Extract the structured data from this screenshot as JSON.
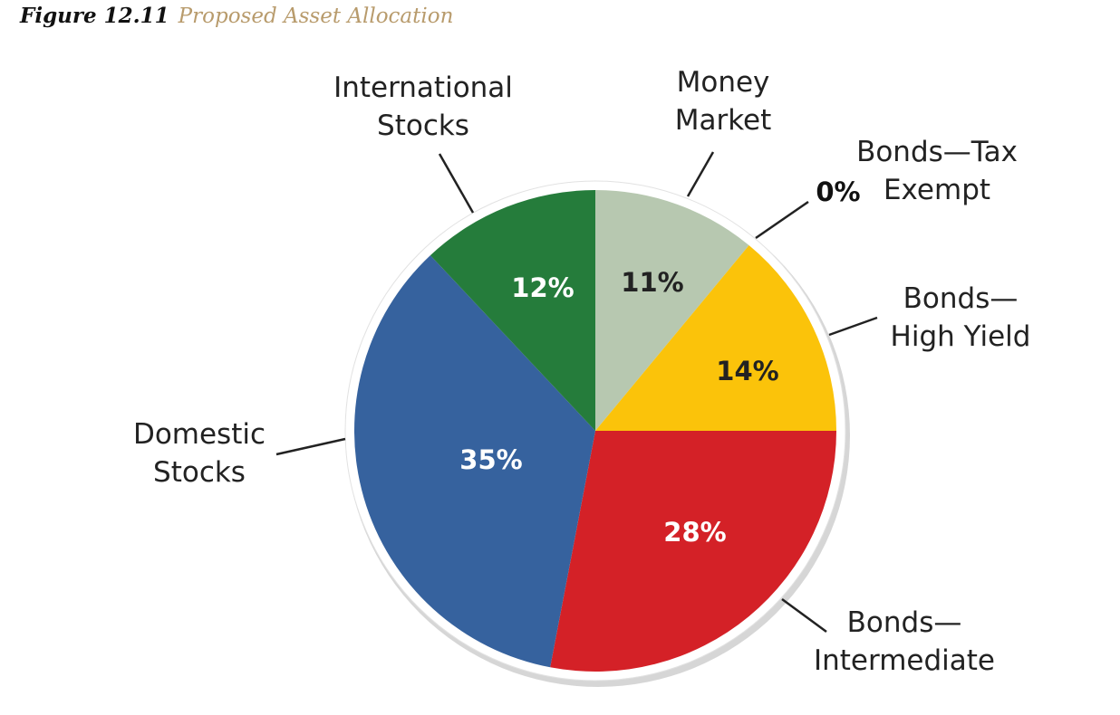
{
  "figure": {
    "number": "Figure 12.11",
    "title": "Proposed Asset Allocation"
  },
  "chart_data": {
    "type": "pie",
    "slices": [
      {
        "name": "Money Market",
        "label_lines": [
          "Money",
          "Market"
        ],
        "value": 11,
        "value_label": "11%",
        "color": "#b7c8b0",
        "text_color": "#222222"
      },
      {
        "name": "Bonds—Tax Exempt",
        "label_lines": [
          "Bonds—Tax",
          "Exempt"
        ],
        "value": 0,
        "value_label": "0%",
        "color": "#c9c9c9",
        "text_color": "#111111"
      },
      {
        "name": "Bonds—High Yield",
        "label_lines": [
          "Bonds—",
          "High Yield"
        ],
        "value": 14,
        "value_label": "14%",
        "color": "#fbc30a",
        "text_color": "#222222"
      },
      {
        "name": "Bonds—Intermediate",
        "label_lines": [
          "Bonds—",
          "Intermediate"
        ],
        "value": 28,
        "value_label": "28%",
        "color": "#d42127",
        "text_color": "#ffffff"
      },
      {
        "name": "Domestic Stocks",
        "label_lines": [
          "Domestic",
          "Stocks"
        ],
        "value": 35,
        "value_label": "35%",
        "color": "#36629e",
        "text_color": "#ffffff"
      },
      {
        "name": "International Stocks",
        "label_lines": [
          "International",
          "Stocks"
        ],
        "value": 12,
        "value_label": "12%",
        "color": "#257c3b",
        "text_color": "#ffffff"
      }
    ]
  }
}
